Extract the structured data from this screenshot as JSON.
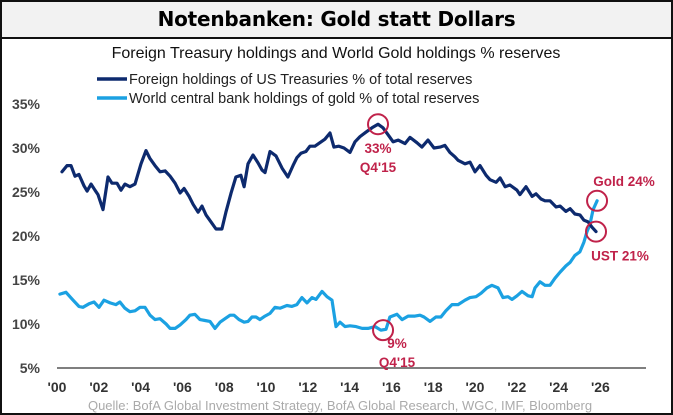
{
  "header": {
    "title": "Notenbanken: Gold statt Dollars"
  },
  "source": "Quelle: BofA Global Investment Strategy, BofA Global Research, WGC, IMF, Bloomberg",
  "colors": {
    "ust": "#0d2a6e",
    "gold": "#1ba1e2",
    "annotation": "#c0224a",
    "axis": "#555555"
  },
  "chart_data": {
    "type": "line",
    "title": "Foreign Treasury holdings and World Gold holdings % reserves",
    "xlabel": "",
    "ylabel": "",
    "xlim": [
      2000,
      2026
    ],
    "ylim": [
      5,
      35
    ],
    "grid": false,
    "legend_position": "top-center",
    "x_tick_labels": [
      "'00",
      "'02",
      "'04",
      "'06",
      "'08",
      "'10",
      "'12",
      "'14",
      "'16",
      "'18",
      "'20",
      "'22",
      "'24",
      "'26"
    ],
    "x_ticks": [
      2000,
      2002,
      2004,
      2006,
      2008,
      2010,
      2012,
      2014,
      2016,
      2018,
      2020,
      2022,
      2024,
      2026
    ],
    "y_tick_labels": [
      "5%",
      "10%",
      "15%",
      "20%",
      "25%",
      "30%",
      "35%"
    ],
    "y_ticks": [
      5,
      10,
      15,
      20,
      25,
      30,
      35
    ],
    "series": [
      {
        "name": "Foreign holdings of US Treasuries % of total reserves",
        "key": "ust",
        "points": [
          [
            2000.24,
            27.3
          ],
          [
            2000.48,
            28
          ],
          [
            2000.67,
            28
          ],
          [
            2000.86,
            26.8
          ],
          [
            2001.05,
            27
          ],
          [
            2001.29,
            25.7
          ],
          [
            2001.44,
            25.1
          ],
          [
            2001.63,
            25.9
          ],
          [
            2001.82,
            25.2
          ],
          [
            2001.96,
            24.7
          ],
          [
            2002.2,
            23
          ],
          [
            2002.44,
            26.7
          ],
          [
            2002.63,
            26
          ],
          [
            2002.87,
            26
          ],
          [
            2003.06,
            25.2
          ],
          [
            2003.25,
            25.9
          ],
          [
            2003.49,
            25.6
          ],
          [
            2003.73,
            25.9
          ],
          [
            2004.02,
            28.2
          ],
          [
            2004.26,
            29.7
          ],
          [
            2004.45,
            28.8
          ],
          [
            2004.69,
            28
          ],
          [
            2004.93,
            27.3
          ],
          [
            2005.17,
            27.4
          ],
          [
            2005.41,
            26.8
          ],
          [
            2005.65,
            26
          ],
          [
            2005.89,
            24.9
          ],
          [
            2006.08,
            25.4
          ],
          [
            2006.32,
            24.5
          ],
          [
            2006.51,
            23.6
          ],
          [
            2006.75,
            22.7
          ],
          [
            2006.94,
            23.4
          ],
          [
            2007.13,
            22.4
          ],
          [
            2007.37,
            21.6
          ],
          [
            2007.61,
            20.8
          ],
          [
            2007.89,
            20.8
          ],
          [
            2008.09,
            22.8
          ],
          [
            2008.33,
            24.9
          ],
          [
            2008.56,
            26.7
          ],
          [
            2008.8,
            26.9
          ],
          [
            2008.95,
            25.6
          ],
          [
            2009.14,
            28.2
          ],
          [
            2009.38,
            29.2
          ],
          [
            2009.62,
            28.3
          ],
          [
            2009.81,
            27.5
          ],
          [
            2009.95,
            27.2
          ],
          [
            2010.19,
            29.6
          ],
          [
            2010.48,
            29.1
          ],
          [
            2010.77,
            27.7
          ],
          [
            2011.05,
            26.7
          ],
          [
            2011.29,
            28
          ],
          [
            2011.48,
            28.9
          ],
          [
            2011.67,
            29.4
          ],
          [
            2011.91,
            29.6
          ],
          [
            2012.1,
            30.2
          ],
          [
            2012.34,
            30.2
          ],
          [
            2012.58,
            30.6
          ],
          [
            2012.82,
            31
          ],
          [
            2013.06,
            31.7
          ],
          [
            2013.25,
            30.1
          ],
          [
            2013.49,
            30.2
          ],
          [
            2013.73,
            30
          ],
          [
            2014.02,
            29.5
          ],
          [
            2014.26,
            30.7
          ],
          [
            2014.5,
            31.3
          ],
          [
            2014.78,
            31.8
          ],
          [
            2015.07,
            32.3
          ],
          [
            2015.36,
            32.7
          ],
          [
            2015.6,
            32.3
          ],
          [
            2015.84,
            31.5
          ],
          [
            2016.08,
            30.7
          ],
          [
            2016.32,
            30.9
          ],
          [
            2016.65,
            30.5
          ],
          [
            2016.89,
            31.2
          ],
          [
            2017.22,
            30.6
          ],
          [
            2017.46,
            30.1
          ],
          [
            2017.75,
            30.9
          ],
          [
            2018.04,
            30
          ],
          [
            2018.33,
            30.1
          ],
          [
            2018.56,
            30.3
          ],
          [
            2018.8,
            29.5
          ],
          [
            2019.04,
            29
          ],
          [
            2019.19,
            28.6
          ],
          [
            2019.52,
            28.2
          ],
          [
            2019.76,
            28.4
          ],
          [
            2020,
            27.3
          ],
          [
            2020.24,
            28
          ],
          [
            2020.53,
            26.9
          ],
          [
            2020.72,
            26.4
          ],
          [
            2021.01,
            26.1
          ],
          [
            2021.2,
            26.6
          ],
          [
            2021.44,
            25.6
          ],
          [
            2021.67,
            25.8
          ],
          [
            2022.01,
            25.2
          ],
          [
            2022.15,
            24.7
          ],
          [
            2022.44,
            25.6
          ],
          [
            2022.73,
            24.5
          ],
          [
            2022.92,
            24.8
          ],
          [
            2023.16,
            24.2
          ],
          [
            2023.35,
            24
          ],
          [
            2023.59,
            24
          ],
          [
            2023.88,
            23.3
          ],
          [
            2024.07,
            23.4
          ],
          [
            2024.35,
            22.8
          ],
          [
            2024.55,
            23.1
          ],
          [
            2024.78,
            22.5
          ],
          [
            2025.02,
            22.4
          ],
          [
            2025.21,
            21.8
          ],
          [
            2025.41,
            21.6
          ],
          [
            2025.6,
            21
          ],
          [
            2025.79,
            20.5
          ]
        ]
      },
      {
        "name": "World central bank holdings of gold % of total reserves",
        "key": "gold",
        "points": [
          [
            2000.14,
            13.4
          ],
          [
            2000.43,
            13.6
          ],
          [
            2000.77,
            12.7
          ],
          [
            2001.05,
            12
          ],
          [
            2001.24,
            11.9
          ],
          [
            2001.53,
            12.3
          ],
          [
            2001.77,
            12.5
          ],
          [
            2002.01,
            11.9
          ],
          [
            2002.25,
            12.7
          ],
          [
            2002.54,
            12.4
          ],
          [
            2002.82,
            12.2
          ],
          [
            2003.01,
            12.5
          ],
          [
            2003.25,
            11.8
          ],
          [
            2003.49,
            11.4
          ],
          [
            2003.73,
            11.5
          ],
          [
            2003.97,
            11.9
          ],
          [
            2004.21,
            11.9
          ],
          [
            2004.45,
            11
          ],
          [
            2004.69,
            10.5
          ],
          [
            2004.93,
            10.6
          ],
          [
            2005.22,
            10
          ],
          [
            2005.41,
            9.5
          ],
          [
            2005.65,
            9.5
          ],
          [
            2005.89,
            9.9
          ],
          [
            2006.17,
            10.5
          ],
          [
            2006.36,
            11
          ],
          [
            2006.6,
            11.1
          ],
          [
            2006.84,
            10.5
          ],
          [
            2007.08,
            10.4
          ],
          [
            2007.32,
            10.3
          ],
          [
            2007.56,
            9.5
          ],
          [
            2007.8,
            10.2
          ],
          [
            2008.04,
            10.6
          ],
          [
            2008.28,
            11
          ],
          [
            2008.47,
            11
          ],
          [
            2008.71,
            10.5
          ],
          [
            2008.95,
            10.2
          ],
          [
            2009.14,
            10.3
          ],
          [
            2009.33,
            10.8
          ],
          [
            2009.52,
            10.8
          ],
          [
            2009.71,
            10.5
          ],
          [
            2009.95,
            10.9
          ],
          [
            2010.19,
            11.2
          ],
          [
            2010.43,
            11.9
          ],
          [
            2010.67,
            11.8
          ],
          [
            2011.0,
            12.1
          ],
          [
            2011.24,
            12
          ],
          [
            2011.48,
            12.2
          ],
          [
            2011.72,
            13
          ],
          [
            2011.96,
            12.4
          ],
          [
            2012.2,
            13
          ],
          [
            2012.39,
            12.8
          ],
          [
            2012.68,
            13.7
          ],
          [
            2012.92,
            13.1
          ],
          [
            2013.16,
            12.7
          ],
          [
            2013.35,
            9.7
          ],
          [
            2013.54,
            10.2
          ],
          [
            2013.78,
            9.7
          ],
          [
            2014.02,
            9.8
          ],
          [
            2014.31,
            9.7
          ],
          [
            2014.6,
            9.5
          ],
          [
            2014.88,
            9.5
          ],
          [
            2015.22,
            9.7
          ],
          [
            2015.5,
            9.3
          ],
          [
            2015.74,
            9.4
          ],
          [
            2015.93,
            10.8
          ],
          [
            2016.27,
            11.1
          ],
          [
            2016.51,
            10.5
          ],
          [
            2016.8,
            10.9
          ],
          [
            2017.13,
            10.9
          ],
          [
            2017.37,
            11
          ],
          [
            2017.56,
            10.8
          ],
          [
            2017.85,
            10.3
          ],
          [
            2018.13,
            10.8
          ],
          [
            2018.37,
            10.8
          ],
          [
            2018.61,
            11.5
          ],
          [
            2018.9,
            12.2
          ],
          [
            2019.19,
            12.2
          ],
          [
            2019.52,
            12.7
          ],
          [
            2019.76,
            13
          ],
          [
            2020.05,
            13.1
          ],
          [
            2020.29,
            13.5
          ],
          [
            2020.57,
            14.1
          ],
          [
            2020.81,
            14.4
          ],
          [
            2021.1,
            14.1
          ],
          [
            2021.34,
            13
          ],
          [
            2021.58,
            13.1
          ],
          [
            2021.77,
            12.8
          ],
          [
            2022.01,
            13.2
          ],
          [
            2022.25,
            13.7
          ],
          [
            2022.54,
            13.2
          ],
          [
            2022.73,
            13.1
          ],
          [
            2022.87,
            14.1
          ],
          [
            2023.11,
            14.8
          ],
          [
            2023.35,
            14.4
          ],
          [
            2023.59,
            14.4
          ],
          [
            2023.83,
            15.2
          ],
          [
            2024.07,
            15.9
          ],
          [
            2024.35,
            16.6
          ],
          [
            2024.55,
            17
          ],
          [
            2024.78,
            17.8
          ],
          [
            2025.02,
            18.2
          ],
          [
            2025.21,
            19.3
          ],
          [
            2025.36,
            20.5
          ],
          [
            2025.5,
            21.3
          ],
          [
            2025.65,
            23
          ],
          [
            2025.84,
            24
          ]
        ]
      }
    ],
    "annotations": [
      {
        "series": "ust",
        "x": 2015.36,
        "y": 32.7,
        "lines": [
          "33%",
          "Q4'15"
        ],
        "label_position": "below"
      },
      {
        "series": "gold",
        "x": 2015.6,
        "y": 9.3,
        "lines": [
          "9%",
          "Q4'15"
        ],
        "label_position": "below-right"
      },
      {
        "series": "gold",
        "x": 2025.84,
        "y": 24,
        "lines": [
          "Gold 24%"
        ],
        "label_position": "above"
      },
      {
        "series": "ust",
        "x": 2025.79,
        "y": 20.5,
        "lines": [
          "UST 21%"
        ],
        "label_position": "below"
      }
    ]
  }
}
